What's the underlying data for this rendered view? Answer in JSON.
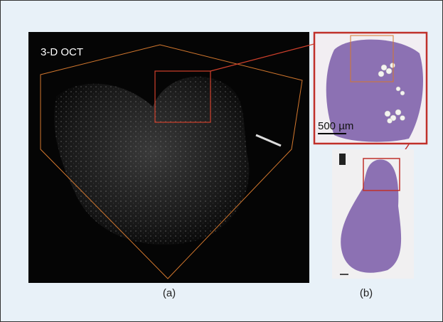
{
  "panels": [
    {
      "image_label": "3-D OCT",
      "caption": "(a)"
    },
    {
      "scale_bar_label": "500 µm",
      "caption": "(b)"
    }
  ]
}
